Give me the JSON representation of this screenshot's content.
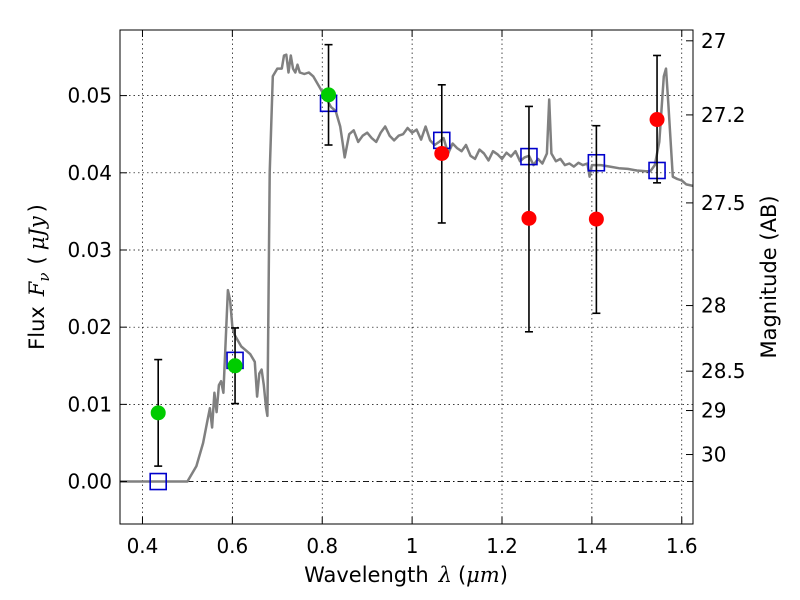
{
  "chart_data": {
    "type": "scatter",
    "xlabel": {
      "prefix": "Wavelength",
      "symbol": "λ",
      "unit_open": "(",
      "unit": "μm",
      "unit_close": ")"
    },
    "ylabel": {
      "prefix": "Flux",
      "symbol": "F",
      "subscript": "ν",
      "unit_open": "(",
      "unit": "μJy",
      "unit_close": ")"
    },
    "y2label": "Magnitude (AB)",
    "xlim": [
      0.35,
      1.625
    ],
    "ylim": [
      -0.0055,
      0.0585
    ],
    "grid": true,
    "xticks": [
      {
        "value": 0.4,
        "label": "0.4"
      },
      {
        "value": 0.6,
        "label": "0.6"
      },
      {
        "value": 0.8,
        "label": "0.8"
      },
      {
        "value": 1.0,
        "label": "1"
      },
      {
        "value": 1.2,
        "label": "1.2"
      },
      {
        "value": 1.4,
        "label": "1.4"
      },
      {
        "value": 1.6,
        "label": "1.6"
      }
    ],
    "yticks": [
      {
        "value": 0.0,
        "label": "0.00"
      },
      {
        "value": 0.01,
        "label": "0.01"
      },
      {
        "value": 0.02,
        "label": "0.02"
      },
      {
        "value": 0.03,
        "label": "0.03"
      },
      {
        "value": 0.04,
        "label": "0.04"
      },
      {
        "value": 0.05,
        "label": "0.05"
      }
    ],
    "y2ticks": [
      {
        "flux": 0.0571,
        "label": "27"
      },
      {
        "flux": 0.0475,
        "label": "27.2"
      },
      {
        "flux": 0.0361,
        "label": "27.5"
      },
      {
        "flux": 0.0228,
        "label": "28"
      },
      {
        "flux": 0.0143,
        "label": "28.5"
      },
      {
        "flux": 0.0092,
        "label": "29"
      },
      {
        "flux": 0.0035,
        "label": "30"
      }
    ],
    "colors": {
      "model": "#808080",
      "obs_green": "#00cc00",
      "obs_red": "#ff0000",
      "synth": "#0000cc",
      "zero_line": "#000000"
    },
    "series": [
      {
        "kind": "line",
        "points": [
          [
            0.35,
            0.0
          ],
          [
            0.5,
            0.0
          ],
          [
            0.52,
            0.002
          ],
          [
            0.535,
            0.005
          ],
          [
            0.545,
            0.008
          ],
          [
            0.55,
            0.0095
          ],
          [
            0.555,
            0.007
          ],
          [
            0.56,
            0.0115
          ],
          [
            0.565,
            0.009
          ],
          [
            0.57,
            0.0125
          ],
          [
            0.575,
            0.013
          ],
          [
            0.58,
            0.0115
          ],
          [
            0.585,
            0.018
          ],
          [
            0.59,
            0.0248
          ],
          [
            0.595,
            0.0235
          ],
          [
            0.6,
            0.02
          ],
          [
            0.605,
            0.019
          ],
          [
            0.61,
            0.0185
          ],
          [
            0.62,
            0.0175
          ],
          [
            0.63,
            0.017
          ],
          [
            0.64,
            0.0165
          ],
          [
            0.65,
            0.0155
          ],
          [
            0.655,
            0.011
          ],
          [
            0.66,
            0.014
          ],
          [
            0.665,
            0.0145
          ],
          [
            0.67,
            0.0125
          ],
          [
            0.675,
            0.0095
          ],
          [
            0.678,
            0.0085
          ],
          [
            0.683,
            0.04
          ],
          [
            0.69,
            0.0525
          ],
          [
            0.7,
            0.0535
          ],
          [
            0.71,
            0.0535
          ],
          [
            0.715,
            0.0552
          ],
          [
            0.72,
            0.0553
          ],
          [
            0.725,
            0.053
          ],
          [
            0.73,
            0.0552
          ],
          [
            0.735,
            0.0535
          ],
          [
            0.74,
            0.053
          ],
          [
            0.745,
            0.054
          ],
          [
            0.75,
            0.053
          ],
          [
            0.76,
            0.0528
          ],
          [
            0.77,
            0.053
          ],
          [
            0.78,
            0.0525
          ],
          [
            0.79,
            0.0515
          ],
          [
            0.8,
            0.0505
          ],
          [
            0.81,
            0.0495
          ],
          [
            0.82,
            0.0485
          ],
          [
            0.83,
            0.048
          ],
          [
            0.84,
            0.046
          ],
          [
            0.845,
            0.044
          ],
          [
            0.85,
            0.042
          ],
          [
            0.86,
            0.045
          ],
          [
            0.87,
            0.0455
          ],
          [
            0.88,
            0.044
          ],
          [
            0.89,
            0.0448
          ],
          [
            0.9,
            0.0452
          ],
          [
            0.91,
            0.0445
          ],
          [
            0.92,
            0.044
          ],
          [
            0.93,
            0.0452
          ],
          [
            0.94,
            0.046
          ],
          [
            0.95,
            0.0448
          ],
          [
            0.96,
            0.0442
          ],
          [
            0.97,
            0.0448
          ],
          [
            0.98,
            0.045
          ],
          [
            0.99,
            0.0458
          ],
          [
            1.0,
            0.0452
          ],
          [
            1.01,
            0.0456
          ],
          [
            1.02,
            0.0443
          ],
          [
            1.03,
            0.046
          ],
          [
            1.04,
            0.0442
          ],
          [
            1.05,
            0.0436
          ],
          [
            1.06,
            0.044
          ],
          [
            1.07,
            0.0445
          ],
          [
            1.08,
            0.0425
          ],
          [
            1.09,
            0.0438
          ],
          [
            1.1,
            0.0432
          ],
          [
            1.11,
            0.0428
          ],
          [
            1.12,
            0.0436
          ],
          [
            1.13,
            0.0422
          ],
          [
            1.14,
            0.0418
          ],
          [
            1.15,
            0.043
          ],
          [
            1.16,
            0.0425
          ],
          [
            1.17,
            0.0416
          ],
          [
            1.18,
            0.0428
          ],
          [
            1.19,
            0.0424
          ],
          [
            1.2,
            0.0418
          ],
          [
            1.21,
            0.0426
          ],
          [
            1.22,
            0.0421
          ],
          [
            1.23,
            0.0428
          ],
          [
            1.24,
            0.0415
          ],
          [
            1.25,
            0.042
          ],
          [
            1.26,
            0.0422
          ],
          [
            1.27,
            0.041
          ],
          [
            1.28,
            0.0418
          ],
          [
            1.29,
            0.0412
          ],
          [
            1.3,
            0.0425
          ],
          [
            1.305,
            0.0495
          ],
          [
            1.31,
            0.0425
          ],
          [
            1.32,
            0.0415
          ],
          [
            1.33,
            0.0418
          ],
          [
            1.34,
            0.041
          ],
          [
            1.35,
            0.0412
          ],
          [
            1.36,
            0.0408
          ],
          [
            1.37,
            0.0413
          ],
          [
            1.38,
            0.041
          ],
          [
            1.39,
            0.0412
          ],
          [
            1.395,
            0.0395
          ],
          [
            1.4,
            0.041
          ],
          [
            1.42,
            0.041
          ],
          [
            1.44,
            0.0408
          ],
          [
            1.46,
            0.0406
          ],
          [
            1.48,
            0.0405
          ],
          [
            1.5,
            0.0403
          ],
          [
            1.52,
            0.0402
          ],
          [
            1.53,
            0.0402
          ],
          [
            1.54,
            0.041
          ],
          [
            1.55,
            0.044
          ],
          [
            1.56,
            0.0525
          ],
          [
            1.565,
            0.0535
          ],
          [
            1.57,
            0.049
          ],
          [
            1.58,
            0.0395
          ],
          [
            1.59,
            0.0392
          ],
          [
            1.6,
            0.039
          ],
          [
            1.61,
            0.0385
          ],
          [
            1.625,
            0.0383
          ]
        ]
      },
      {
        "kind": "errorbar",
        "points": [
          {
            "x": 0.435,
            "y": 0.0089,
            "ylow": 0.002,
            "yhigh": 0.0158,
            "color": "green"
          },
          {
            "x": 0.606,
            "y": 0.015,
            "ylow": 0.0101,
            "yhigh": 0.0199,
            "color": "green"
          },
          {
            "x": 0.814,
            "y": 0.0501,
            "ylow": 0.0436,
            "yhigh": 0.0566,
            "color": "green"
          },
          {
            "x": 1.066,
            "y": 0.0425,
            "ylow": 0.0335,
            "yhigh": 0.0514,
            "color": "red"
          },
          {
            "x": 1.26,
            "y": 0.0341,
            "ylow": 0.0194,
            "yhigh": 0.0486,
            "color": "red"
          },
          {
            "x": 1.41,
            "y": 0.034,
            "ylow": 0.0218,
            "yhigh": 0.0461,
            "color": "red"
          },
          {
            "x": 1.545,
            "y": 0.0469,
            "ylow": 0.0387,
            "yhigh": 0.0552,
            "color": "red"
          }
        ]
      },
      {
        "kind": "scatter",
        "points": [
          {
            "x": 0.435,
            "y": 0.0
          },
          {
            "x": 0.606,
            "y": 0.0157
          },
          {
            "x": 0.814,
            "y": 0.049
          },
          {
            "x": 1.066,
            "y": 0.0442
          },
          {
            "x": 1.26,
            "y": 0.0421
          },
          {
            "x": 1.41,
            "y": 0.0413
          },
          {
            "x": 1.545,
            "y": 0.0403
          }
        ]
      }
    ]
  }
}
